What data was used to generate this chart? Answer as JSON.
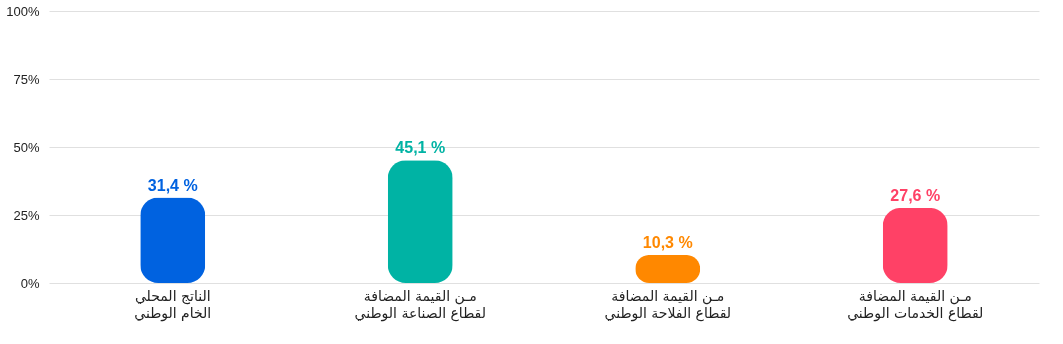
{
  "chart_data": {
    "type": "bar",
    "categories": [
      "الناتج المحلي\nالخام الوطني",
      "مـن القيمة المضافة\nلقطاع الصناعة الوطني",
      "مـن القيمة المضافة\nلقطاع الفلاحة الوطني",
      "مـن القيمة المضافة\nلقطاع الخدمات الوطني"
    ],
    "values": [
      31.4,
      45.1,
      10.3,
      27.6
    ],
    "colors": [
      "#0062e0",
      "#00b3a4",
      "#ff8800",
      "#ff4166"
    ],
    "value_labels": [
      "31,4 %",
      "45,1 %",
      "10,3 %",
      "27,6 %"
    ],
    "ylim": [
      0,
      100
    ],
    "yticks": [
      {
        "value": 0,
        "label": "0%"
      },
      {
        "value": 25,
        "label": "25%"
      },
      {
        "value": 50,
        "label": "50%"
      },
      {
        "value": 75,
        "label": "75%"
      },
      {
        "value": 100,
        "label": "100%"
      }
    ],
    "grid": "y"
  }
}
